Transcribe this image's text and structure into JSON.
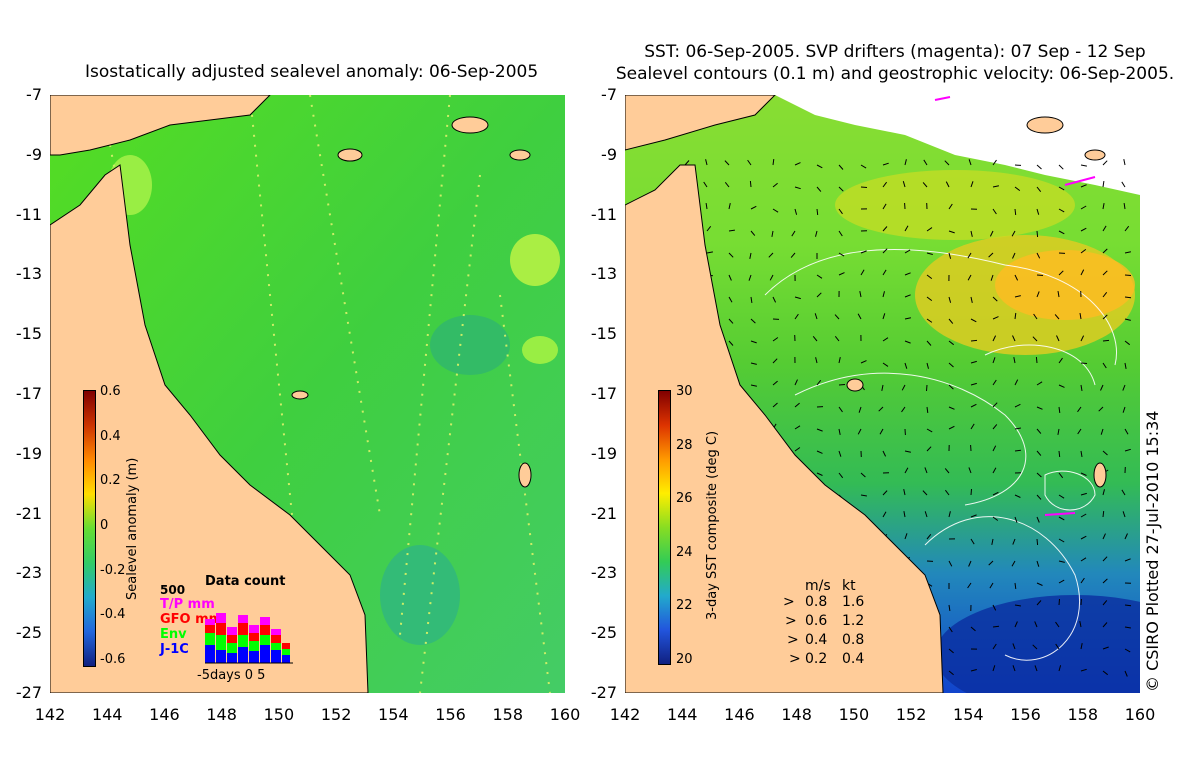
{
  "left_panel": {
    "title": "Isostatically adjusted sealevel anomaly: 06-Sep-2005",
    "y_ticks": [
      "-7",
      "-9",
      "-11",
      "-13",
      "-15",
      "-17",
      "-19",
      "-21",
      "-23",
      "-25",
      "-27"
    ],
    "x_ticks": [
      "142",
      "144",
      "146",
      "148",
      "150",
      "152",
      "154",
      "156",
      "158",
      "160"
    ],
    "colorbar": {
      "label": "Sealevel anomaly (m)",
      "ticks": [
        "0.6",
        "0.4",
        "0.2",
        "0",
        "-0.2",
        "-0.4",
        "-0.6"
      ]
    },
    "data_count": {
      "title": "Data count",
      "max_label": "500",
      "series": [
        "T/P mm",
        "GFO mm",
        "Env",
        "J-1C"
      ],
      "series_colors": [
        "#ff00ff",
        "#ff0000",
        "#00ff00",
        "#0000ff"
      ],
      "x_label": "-5days 0      5"
    }
  },
  "right_panel": {
    "title_line1": "SST: 06-Sep-2005. SVP drifters (magenta): 07 Sep - 12 Sep",
    "title_line2": "Sealevel contours (0.1 m) and geostrophic velocity: 06-Sep-2005.",
    "y_ticks": [
      "-7",
      "-9",
      "-11",
      "-13",
      "-15",
      "-17",
      "-19",
      "-21",
      "-23",
      "-25",
      "-27"
    ],
    "x_ticks": [
      "142",
      "144",
      "146",
      "148",
      "150",
      "152",
      "154",
      "156",
      "158",
      "160"
    ],
    "colorbar": {
      "label": "3-day SST composite (deg C)",
      "ticks": [
        "30",
        "28",
        "26",
        "24",
        "22",
        "20"
      ]
    },
    "velocity_legend": {
      "header_ms": "m/s",
      "header_kt": "kt",
      "rows": [
        {
          "ms": "0.8",
          "kt": "1.6"
        },
        {
          "ms": "0.6",
          "kt": "1.2"
        },
        {
          "ms": "0.4",
          "kt": "0.8"
        },
        {
          "ms": "0.2",
          "kt": "0.4"
        }
      ]
    }
  },
  "copyright": "© CSIRO Plotted 27-Jul-2010 15:34",
  "colors": {
    "land": "#ffcc99",
    "ocean_green": "#44cc44",
    "white_cloud": "#ffffff"
  }
}
